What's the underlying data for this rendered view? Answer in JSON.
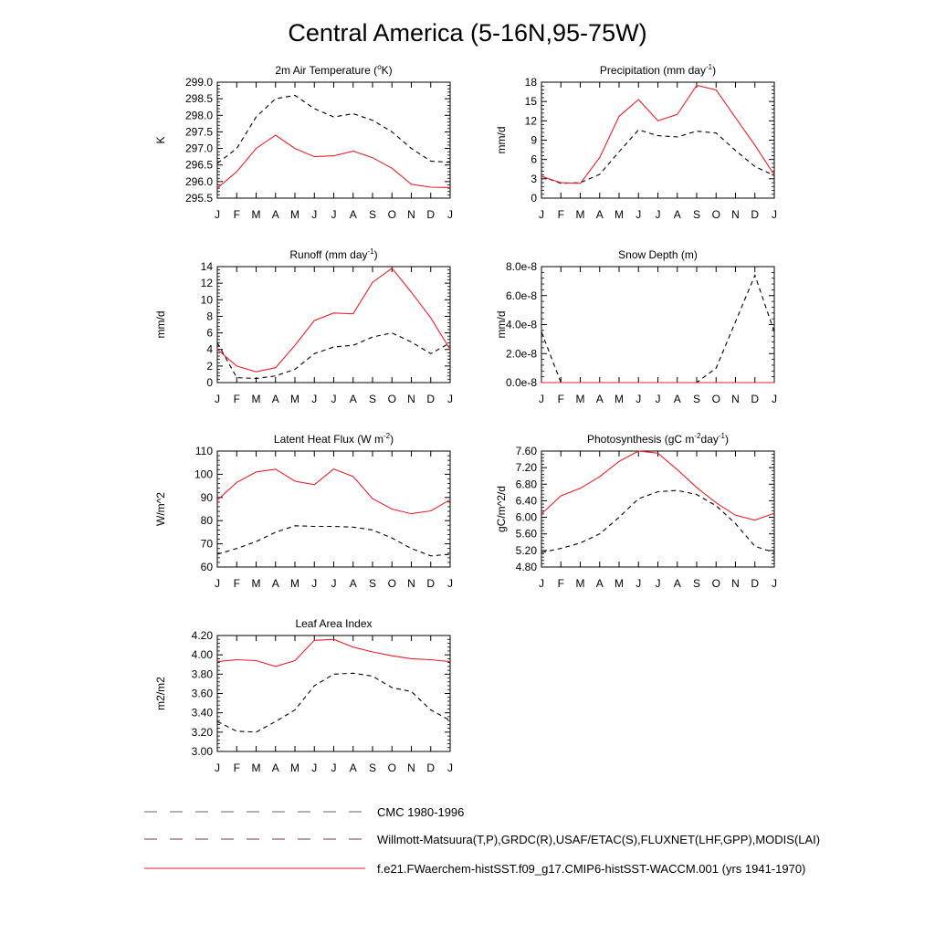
{
  "title": "Central America (5-16N,95-75W)",
  "months": [
    "J",
    "F",
    "M",
    "A",
    "M",
    "J",
    "J",
    "A",
    "S",
    "O",
    "N",
    "D",
    "J"
  ],
  "colors": {
    "model": "#e8202a",
    "obs": "#000000"
  },
  "chart_data": [
    {
      "type": "line",
      "title_main": "2m Air Temperature (",
      "title_sup": "o",
      "title_end": "K)",
      "ylabel": "K",
      "ylim": [
        295.5,
        299.0
      ],
      "yticks": [
        "295.5",
        "296.0",
        "296.5",
        "297.0",
        "297.5",
        "298.0",
        "298.5",
        "299.0"
      ],
      "series": [
        {
          "style": "dashed",
          "values": [
            296.55,
            297.0,
            297.95,
            298.5,
            298.6,
            298.2,
            297.95,
            298.05,
            297.85,
            297.5,
            297.0,
            296.62,
            296.58
          ]
        },
        {
          "style": "solid",
          "values": [
            295.8,
            296.3,
            297.0,
            297.4,
            297.0,
            296.75,
            296.78,
            296.92,
            296.72,
            296.4,
            295.92,
            295.83,
            295.82
          ]
        }
      ]
    },
    {
      "type": "line",
      "title_main": "Precipitation (mm day",
      "title_sup": "-1",
      "title_end": ")",
      "ylabel": "mm/d",
      "ylim": [
        0,
        18
      ],
      "yticks": [
        "0",
        "3",
        "6",
        "9",
        "12",
        "15",
        "18"
      ],
      "series": [
        {
          "style": "dashed",
          "values": [
            3.4,
            2.3,
            2.4,
            3.7,
            7.2,
            10.6,
            9.7,
            9.5,
            10.4,
            10.1,
            7.4,
            4.9,
            3.5
          ]
        },
        {
          "style": "solid",
          "values": [
            3.4,
            2.4,
            2.3,
            6.3,
            12.7,
            15.3,
            12.0,
            13.0,
            17.5,
            16.8,
            12.5,
            8.2,
            3.6
          ]
        }
      ]
    },
    {
      "type": "line",
      "title_main": "Runoff (mm day",
      "title_sup": "-1",
      "title_end": ")",
      "ylabel": "mm/d",
      "ylim": [
        0,
        14
      ],
      "yticks": [
        "0",
        "2",
        "4",
        "6",
        "8",
        "10",
        "12",
        "14"
      ],
      "series": [
        {
          "style": "dashed",
          "values": [
            4.8,
            0.6,
            0.5,
            0.8,
            1.6,
            3.5,
            4.3,
            4.5,
            5.5,
            6.0,
            4.9,
            3.5,
            4.8
          ]
        },
        {
          "style": "solid",
          "values": [
            4.0,
            2.0,
            1.3,
            1.8,
            4.5,
            7.5,
            8.4,
            8.3,
            12.1,
            13.8,
            10.9,
            7.8,
            4.0
          ]
        }
      ]
    },
    {
      "type": "line",
      "title_main": "Snow Depth (m)",
      "title_sup": "",
      "title_end": "",
      "ylabel": "mm/d",
      "ylim": [
        0,
        8e-08
      ],
      "yticks": [
        "0.0e-8",
        "2.0e-8",
        "4.0e-8",
        "6.0e-8",
        "8.0e-8"
      ],
      "series": [
        {
          "style": "dashed",
          "values": [
            3.5e-08,
            0,
            0,
            0,
            0,
            0,
            0,
            0,
            0,
            1e-08,
            4.2e-08,
            7.4e-08,
            3.5e-08
          ]
        },
        {
          "style": "solid",
          "values": [
            0,
            0,
            0,
            0,
            0,
            0,
            0,
            0,
            0,
            0,
            0,
            0,
            0
          ]
        }
      ]
    },
    {
      "type": "line",
      "title_main": "Latent Heat Flux (W m",
      "title_sup": "-2",
      "title_end": ")",
      "ylabel": "W/m^2",
      "ylim": [
        60,
        110
      ],
      "yticks": [
        "60",
        "70",
        "80",
        "90",
        "100",
        "110"
      ],
      "series": [
        {
          "style": "dashed",
          "values": [
            65.5,
            68.0,
            71.0,
            75.0,
            77.8,
            77.5,
            77.5,
            77.2,
            76.0,
            72.5,
            68.0,
            64.8,
            65.5
          ]
        },
        {
          "style": "solid",
          "values": [
            88.8,
            96.5,
            101.0,
            102.2,
            97.0,
            95.5,
            102.3,
            99.0,
            89.5,
            85.0,
            83.0,
            84.2,
            89.0
          ]
        }
      ]
    },
    {
      "type": "line",
      "title_main": "Photosynthesis (gC m",
      "title_sup": "-2",
      "title_mid": "day",
      "title_sup2": "-1",
      "title_end": ")",
      "ylabel": "gC/m^2/d",
      "ylim": [
        4.8,
        7.6
      ],
      "yticks": [
        "4.80",
        "5.20",
        "5.60",
        "6.00",
        "6.40",
        "6.80",
        "7.20",
        "7.60"
      ],
      "series": [
        {
          "style": "dashed",
          "values": [
            5.15,
            5.25,
            5.38,
            5.6,
            6.0,
            6.45,
            6.62,
            6.65,
            6.55,
            6.28,
            5.85,
            5.3,
            5.15
          ]
        },
        {
          "style": "solid",
          "values": [
            6.08,
            6.52,
            6.7,
            6.98,
            7.35,
            7.6,
            7.55,
            7.15,
            6.72,
            6.35,
            6.05,
            5.93,
            6.1
          ]
        }
      ]
    },
    {
      "type": "line",
      "title_main": "Leaf Area Index",
      "title_sup": "",
      "title_end": "",
      "ylabel": "m2/m2",
      "ylim": [
        3.0,
        4.2
      ],
      "yticks": [
        "3.00",
        "3.20",
        "3.40",
        "3.60",
        "3.80",
        "4.00",
        "4.20"
      ],
      "series": [
        {
          "style": "dashed",
          "values": [
            3.31,
            3.21,
            3.2,
            3.31,
            3.43,
            3.68,
            3.8,
            3.81,
            3.78,
            3.66,
            3.62,
            3.43,
            3.32
          ]
        },
        {
          "style": "solid",
          "values": [
            3.93,
            3.95,
            3.94,
            3.88,
            3.94,
            4.15,
            4.16,
            4.08,
            4.03,
            3.99,
            3.96,
            3.95,
            3.93
          ]
        }
      ]
    }
  ],
  "legend": [
    {
      "style": "dashed-black",
      "label": "CMC 1980-1996"
    },
    {
      "style": "dashed-mixed",
      "label": "Willmott-Matsuura(T,P),GRDC(R),USAF/ETAC(S),FLUXNET(LHF,GPP),MODIS(LAI)"
    },
    {
      "style": "solid-red",
      "label": "f.e21.FWaerchem-histSST.f09_g17.CMIP6-histSST-WACCM.001 (yrs 1941-1970)"
    }
  ]
}
